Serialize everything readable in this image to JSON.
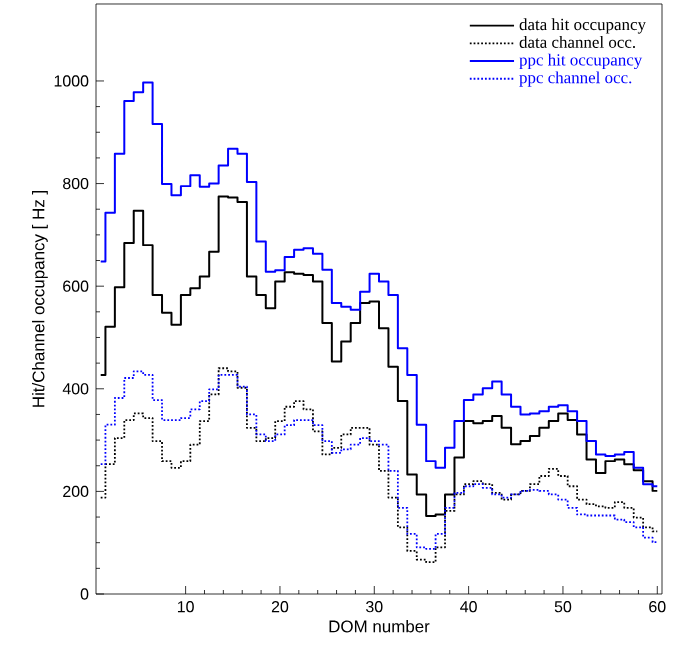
{
  "chart_data": {
    "type": "step",
    "xlabel": "DOM number",
    "ylabel": "Hit/Channel occupancy [ Hz ]",
    "x": [
      1,
      2,
      3,
      4,
      5,
      6,
      7,
      8,
      9,
      10,
      11,
      12,
      13,
      14,
      15,
      16,
      17,
      18,
      19,
      20,
      21,
      22,
      23,
      24,
      25,
      26,
      27,
      28,
      29,
      30,
      31,
      32,
      33,
      34,
      35,
      36,
      37,
      38,
      39,
      40,
      41,
      42,
      43,
      44,
      45,
      46,
      47,
      48,
      49,
      50,
      51,
      52,
      53,
      54,
      55,
      56,
      57,
      58,
      59,
      60
    ],
    "xlim": [
      0.5,
      60.5
    ],
    "xticks": [
      10,
      20,
      30,
      40,
      50,
      60
    ],
    "ylim": [
      0,
      1150
    ],
    "yticks": [
      0,
      200,
      400,
      600,
      800,
      1000
    ],
    "legend": "top right",
    "grid": false,
    "series": [
      {
        "name": "data hit occupancy",
        "color": "#000000",
        "line_style": "solid",
        "values": [
          427,
          521,
          598,
          684,
          747,
          680,
          583,
          548,
          525,
          583,
          596,
          619,
          667,
          775,
          773,
          764,
          619,
          583,
          557,
          609,
          627,
          624,
          622,
          609,
          528,
          453,
          492,
          528,
          567,
          570,
          518,
          443,
          376,
          233,
          194,
          152,
          155,
          194,
          266,
          337,
          333,
          337,
          347,
          324,
          292,
          298,
          308,
          324,
          337,
          352,
          339,
          311,
          262,
          236,
          259,
          262,
          253,
          241,
          220,
          201
        ]
      },
      {
        "name": "data channel occ.",
        "color": "#000000",
        "line_style": "dotted",
        "values": [
          188,
          253,
          304,
          339,
          352,
          343,
          298,
          259,
          246,
          259,
          291,
          337,
          389,
          440,
          434,
          402,
          324,
          298,
          304,
          337,
          365,
          376,
          360,
          317,
          272,
          285,
          311,
          324,
          324,
          291,
          240,
          188,
          130,
          84,
          67,
          62,
          91,
          162,
          194,
          214,
          220,
          214,
          197,
          184,
          194,
          201,
          214,
          230,
          244,
          230,
          210,
          184,
          175,
          171,
          168,
          179,
          168,
          149,
          130,
          122
        ]
      },
      {
        "name": "ppc hit occupancy",
        "color": "#0000ff",
        "line_style": "solid",
        "values": [
          648,
          743,
          858,
          961,
          978,
          997,
          916,
          799,
          777,
          795,
          816,
          794,
          800,
          835,
          868,
          858,
          803,
          687,
          628,
          631,
          657,
          671,
          674,
          663,
          632,
          567,
          560,
          554,
          589,
          624,
          609,
          583,
          479,
          427,
          330,
          259,
          246,
          285,
          337,
          378,
          389,
          401,
          414,
          389,
          365,
          350,
          352,
          356,
          365,
          368,
          356,
          337,
          298,
          272,
          269,
          272,
          277,
          246,
          214,
          210
        ]
      },
      {
        "name": "ppc channel occ.",
        "color": "#0000ff",
        "line_style": "dotted",
        "values": [
          253,
          330,
          382,
          421,
          434,
          427,
          378,
          339,
          339,
          343,
          360,
          376,
          399,
          427,
          427,
          404,
          350,
          311,
          298,
          311,
          329,
          339,
          339,
          329,
          298,
          275,
          282,
          291,
          304,
          298,
          291,
          240,
          168,
          117,
          91,
          88,
          117,
          168,
          197,
          210,
          214,
          207,
          194,
          188,
          194,
          201,
          203,
          201,
          194,
          184,
          168,
          155,
          153,
          153,
          153,
          145,
          140,
          130,
          110,
          101
        ]
      }
    ]
  }
}
